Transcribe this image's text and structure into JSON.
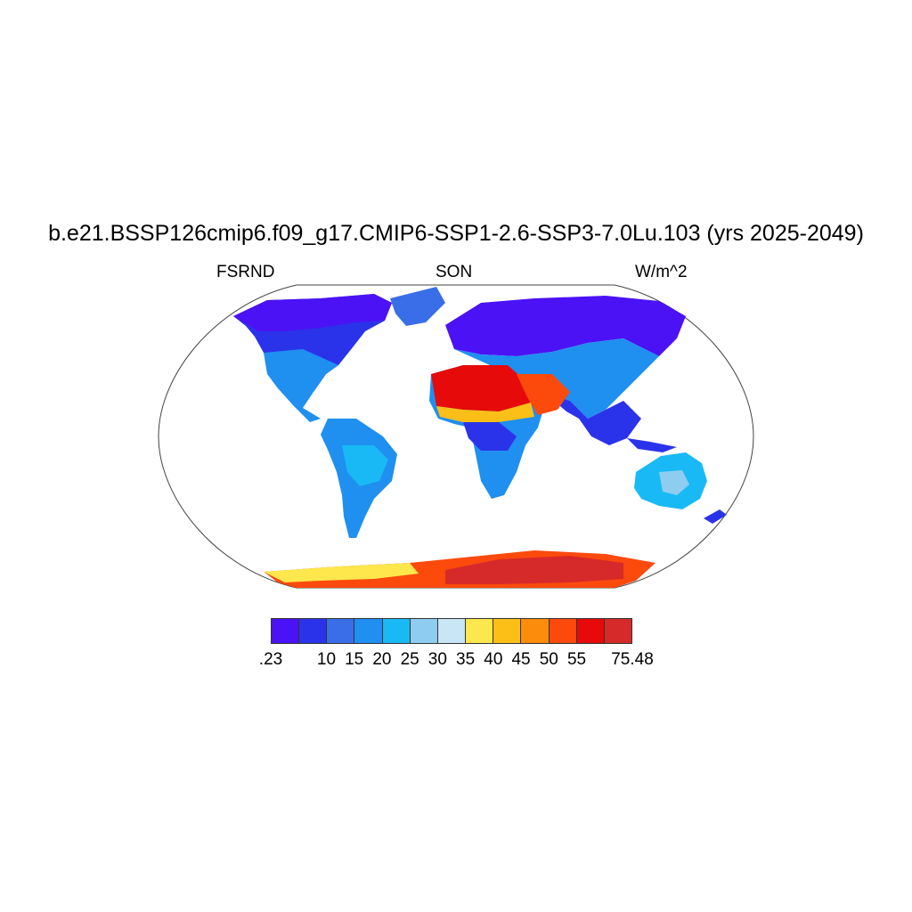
{
  "title": "b.e21.BSSP126cmip6.f09_g17.CMIP6-SSP1-2.6-SSP3-7.0Lu.103 (yrs 2025-2049)",
  "left_label": "FSRND",
  "center_label": "SON",
  "right_label": "W/m^2",
  "colorbar": {
    "colors": [
      "#4b12f5",
      "#2b33ea",
      "#3a6ee8",
      "#1f8ff0",
      "#19b9f6",
      "#8fcdf0",
      "#c8e6f5",
      "#fde74c",
      "#fbbf17",
      "#fb8c0c",
      "#fb4a0c",
      "#e60a0a",
      "#d62a2a"
    ],
    "labels": [
      ".23",
      "10",
      "15",
      "20",
      "25",
      "30",
      "35",
      "40",
      "45",
      "50",
      "55",
      "75.48"
    ]
  },
  "legend_scale": [
    0.23,
    75.48
  ]
}
